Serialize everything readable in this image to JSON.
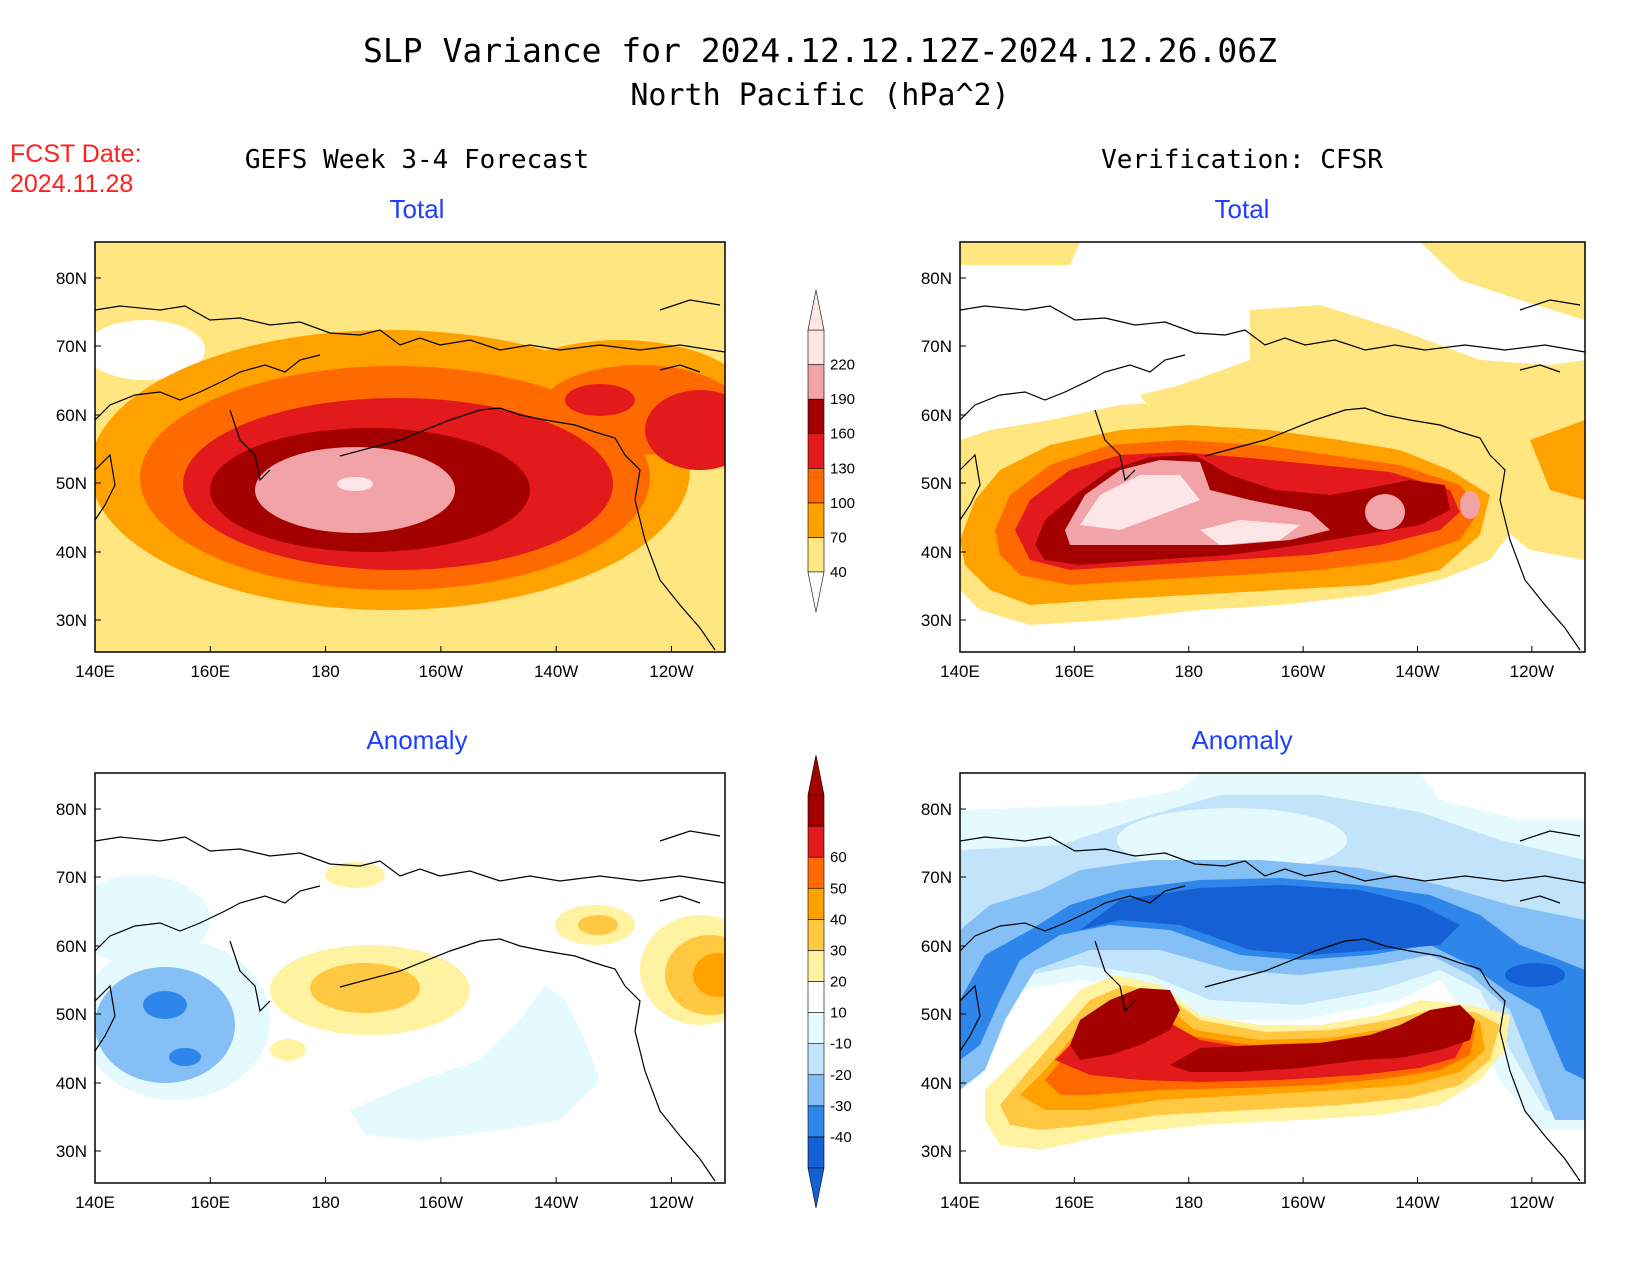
{
  "header": {
    "title_line1": "SLP Variance for 2024.12.12.12Z-2024.12.26.06Z",
    "title_line2": "North Pacific (hPa^2)",
    "fcst_label": "FCST Date:",
    "fcst_date": "2024.11.28",
    "left_column_title": "GEFS Week 3-4 Forecast",
    "right_column_title": "Verification: CFSR"
  },
  "panels": {
    "fcst_total_title": "Total",
    "cfsr_total_title": "Total",
    "fcst_anom_title": "Anomaly",
    "cfsr_anom_title": "Anomaly"
  },
  "axes": {
    "lat_labels": [
      "80N",
      "70N",
      "60N",
      "50N",
      "40N",
      "30N"
    ],
    "lon_labels": [
      "140E",
      "160E",
      "180",
      "160W",
      "140W",
      "120W"
    ]
  },
  "colorbars": {
    "total": {
      "labels": [
        "40",
        "70",
        "100",
        "130",
        "160",
        "190",
        "220"
      ],
      "colors": [
        "#ffe680",
        "#ffa200",
        "#ff6a00",
        "#e31a1c",
        "#a50000",
        "#f2a3a8",
        "#fde6e8"
      ]
    },
    "anomaly": {
      "labels": [
        "-40",
        "-30",
        "-20",
        "-10",
        "10",
        "20",
        "30",
        "40",
        "50",
        "60"
      ],
      "colors": [
        "#1560d4",
        "#2e86ea",
        "#84c0f5",
        "#c2e4fb",
        "#e4fafe",
        "#ffffff",
        "#fff2a0",
        "#ffc840",
        "#ffa200",
        "#ff6a00",
        "#e31a1c",
        "#a50000"
      ]
    }
  },
  "colors": {
    "title_blue": "#1f3fff",
    "fcst_red": "#ff2020"
  }
}
